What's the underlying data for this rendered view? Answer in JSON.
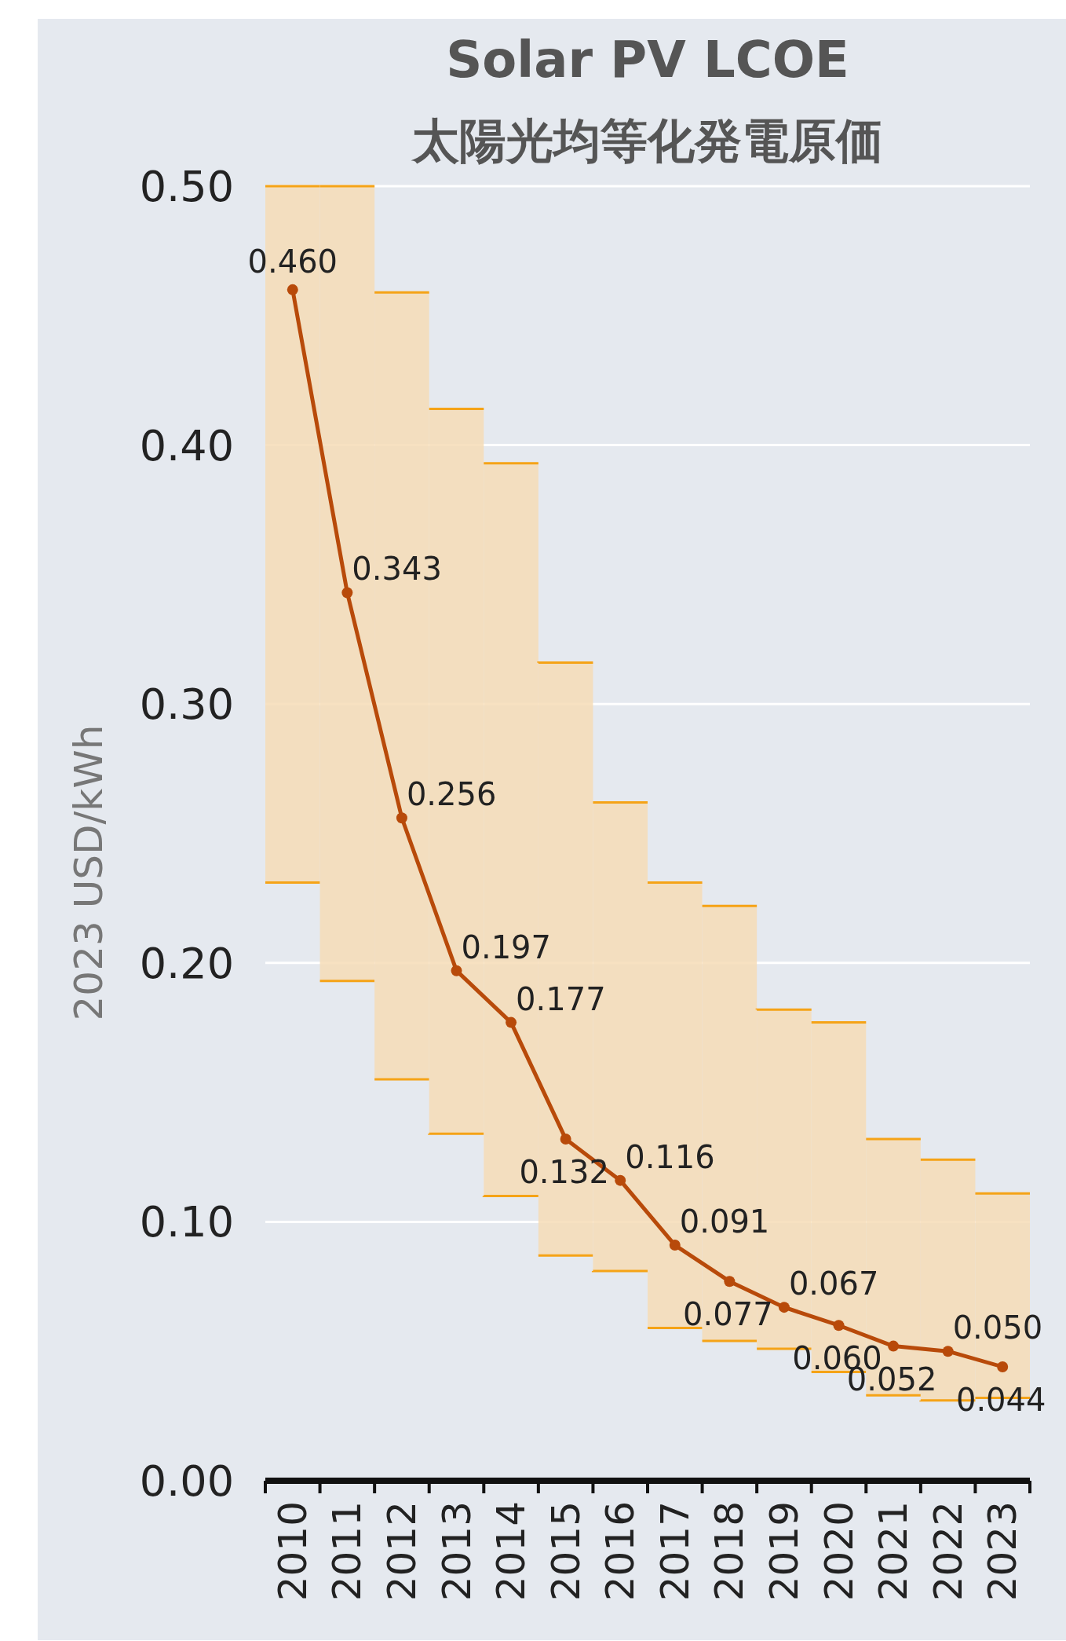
{
  "chart_data": {
    "type": "line",
    "title": "Solar PV LCOE",
    "subtitle": "太陽光均等化発電原価",
    "ylabel": "2023 USD/kWh",
    "categories": [
      "2010",
      "2011",
      "2012",
      "2013",
      "2014",
      "2015",
      "2016",
      "2017",
      "2018",
      "2019",
      "2020",
      "2021",
      "2022",
      "2023"
    ],
    "ylim": [
      0,
      0.5
    ],
    "yticks": [
      {
        "value": 0,
        "label": "0.00"
      },
      {
        "value": 0.1,
        "label": "0.10"
      },
      {
        "value": 0.2,
        "label": "0.20"
      },
      {
        "value": 0.3,
        "label": "0.30"
      },
      {
        "value": 0.4,
        "label": "0.40"
      },
      {
        "value": 0.5,
        "label": "0.50"
      }
    ],
    "grid": "y",
    "series": [
      {
        "type": "bar",
        "color": "#f6dcb6",
        "base": [
          0.231,
          0.193,
          0.155,
          0.134,
          0.11,
          0.087,
          0.081,
          0.059,
          0.054,
          0.051,
          0.042,
          0.033,
          0.031,
          0.032
        ],
        "values": [
          0.269,
          0.307,
          0.304,
          0.28,
          0.283,
          0.229,
          0.181,
          0.172,
          0.168,
          0.131,
          0.135,
          0.099,
          0.093,
          0.079
        ]
      },
      {
        "color": "#b84a0a",
        "marker": "circle",
        "values": [
          0.46,
          0.343,
          0.256,
          0.197,
          0.177,
          0.132,
          0.116,
          0.091,
          0.077,
          0.067,
          0.06,
          0.052,
          0.05,
          0.044
        ],
        "value_labels": [
          "0.460",
          "0.343",
          "0.256",
          "0.197",
          "0.177",
          "0.132",
          "0.116",
          "0.091",
          "0.077",
          "0.067",
          "0.060",
          "0.052",
          "0.050",
          "0.044"
        ]
      }
    ]
  }
}
